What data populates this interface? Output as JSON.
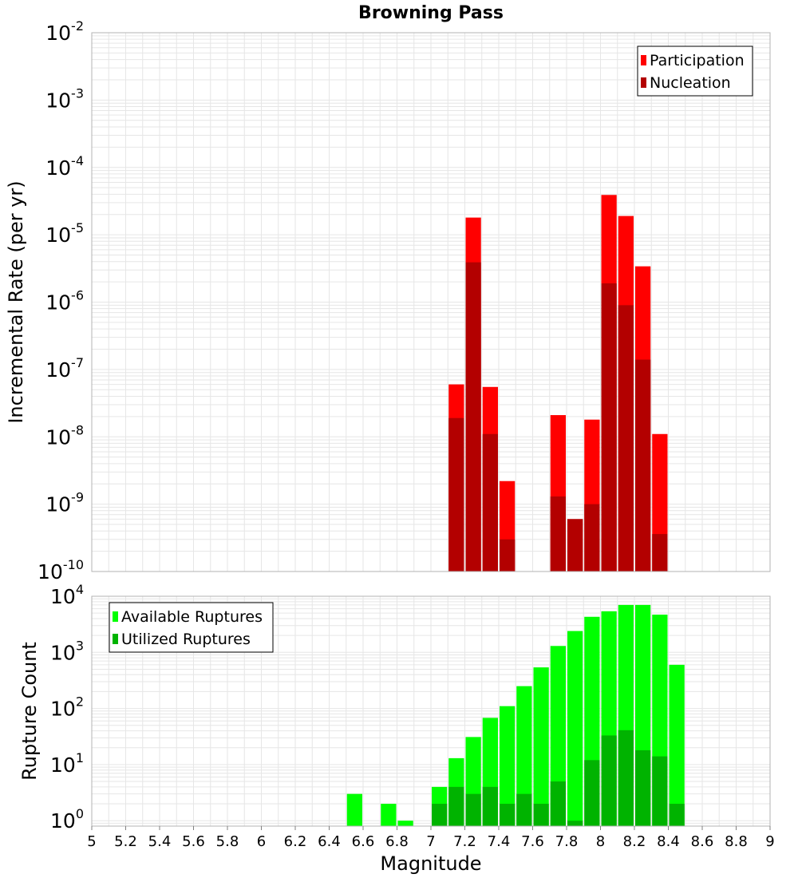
{
  "chart_data": [
    {
      "id": "rates",
      "type": "bar",
      "title": "Browning Pass",
      "xlabel": "",
      "ylabel": "Incremental Rate (per yr)",
      "yscale": "log",
      "xlim": [
        5,
        9
      ],
      "ylim": [
        1e-10,
        0.01
      ],
      "y_ticks": [
        {
          "base": "10",
          "exp": "-10",
          "value": 1e-10
        },
        {
          "base": "10",
          "exp": "-9",
          "value": 1e-09
        },
        {
          "base": "10",
          "exp": "-8",
          "value": 1e-08
        },
        {
          "base": "10",
          "exp": "-7",
          "value": 1e-07
        },
        {
          "base": "10",
          "exp": "-6",
          "value": 1e-06
        },
        {
          "base": "10",
          "exp": "-5",
          "value": 1e-05
        },
        {
          "base": "10",
          "exp": "-4",
          "value": 0.0001
        },
        {
          "base": "10",
          "exp": "-3",
          "value": 0.001
        },
        {
          "base": "10",
          "exp": "-2",
          "value": 0.01
        }
      ],
      "bin_width": 0.1,
      "grid": true,
      "legend_position": "top-right",
      "series": [
        {
          "name": "Participation",
          "color": "#ff0000",
          "points": [
            {
              "x": 7.15,
              "y": 6e-08
            },
            {
              "x": 7.25,
              "y": 1.8e-05
            },
            {
              "x": 7.35,
              "y": 5.5e-08
            },
            {
              "x": 7.45,
              "y": 2.2e-09
            },
            {
              "x": 7.75,
              "y": 2.1e-08
            },
            {
              "x": 7.85,
              "y": 6e-10
            },
            {
              "x": 7.95,
              "y": 1.8e-08
            },
            {
              "x": 8.05,
              "y": 3.9e-05
            },
            {
              "x": 8.15,
              "y": 1.9e-05
            },
            {
              "x": 8.25,
              "y": 3.4e-06
            },
            {
              "x": 8.35,
              "y": 1.1e-08
            }
          ]
        },
        {
          "name": "Nucleation",
          "color": "#b30000",
          "points": [
            {
              "x": 7.15,
              "y": 1.9e-08
            },
            {
              "x": 7.25,
              "y": 3.9e-06
            },
            {
              "x": 7.35,
              "y": 1.1e-08
            },
            {
              "x": 7.45,
              "y": 3e-10
            },
            {
              "x": 7.75,
              "y": 1.3e-09
            },
            {
              "x": 7.85,
              "y": 6e-10
            },
            {
              "x": 7.95,
              "y": 1e-09
            },
            {
              "x": 8.05,
              "y": 1.9e-06
            },
            {
              "x": 8.15,
              "y": 9e-07
            },
            {
              "x": 8.25,
              "y": 1.4e-07
            },
            {
              "x": 8.35,
              "y": 3.6e-10
            }
          ]
        }
      ]
    },
    {
      "id": "counts",
      "type": "bar",
      "title": "",
      "xlabel": "Magnitude",
      "ylabel": "Rupture Count",
      "yscale": "log",
      "xlim": [
        5,
        9
      ],
      "ylim": [
        0.8,
        10000
      ],
      "x_ticks": [
        "5",
        "5.2",
        "5.4",
        "5.6",
        "5.8",
        "6",
        "6.2",
        "6.4",
        "6.6",
        "6.8",
        "7",
        "7.2",
        "7.4",
        "7.6",
        "7.8",
        "8",
        "8.2",
        "8.4",
        "8.6",
        "8.8",
        "9"
      ],
      "y_ticks": [
        {
          "base": "10",
          "exp": "0",
          "value": 1
        },
        {
          "base": "10",
          "exp": "1",
          "value": 10
        },
        {
          "base": "10",
          "exp": "2",
          "value": 100
        },
        {
          "base": "10",
          "exp": "3",
          "value": 1000
        },
        {
          "base": "10",
          "exp": "4",
          "value": 10000
        }
      ],
      "bin_width": 0.1,
      "grid": true,
      "legend_position": "top-left",
      "series": [
        {
          "name": "Available Ruptures",
          "color": "#00ff00",
          "points": [
            {
              "x": 6.55,
              "y": 3
            },
            {
              "x": 6.75,
              "y": 2
            },
            {
              "x": 6.85,
              "y": 1
            },
            {
              "x": 7.05,
              "y": 4
            },
            {
              "x": 7.15,
              "y": 13
            },
            {
              "x": 7.25,
              "y": 31
            },
            {
              "x": 7.35,
              "y": 68
            },
            {
              "x": 7.45,
              "y": 110
            },
            {
              "x": 7.55,
              "y": 250
            },
            {
              "x": 7.65,
              "y": 540
            },
            {
              "x": 7.75,
              "y": 1300
            },
            {
              "x": 7.85,
              "y": 2400
            },
            {
              "x": 7.95,
              "y": 4300
            },
            {
              "x": 8.05,
              "y": 5400
            },
            {
              "x": 8.15,
              "y": 7000
            },
            {
              "x": 8.25,
              "y": 7000
            },
            {
              "x": 8.35,
              "y": 4700
            },
            {
              "x": 8.45,
              "y": 600
            }
          ]
        },
        {
          "name": "Utilized Ruptures",
          "color": "#00b300",
          "points": [
            {
              "x": 7.05,
              "y": 2
            },
            {
              "x": 7.15,
              "y": 4
            },
            {
              "x": 7.25,
              "y": 3
            },
            {
              "x": 7.35,
              "y": 4
            },
            {
              "x": 7.45,
              "y": 2
            },
            {
              "x": 7.55,
              "y": 3
            },
            {
              "x": 7.65,
              "y": 2
            },
            {
              "x": 7.75,
              "y": 5
            },
            {
              "x": 7.85,
              "y": 1
            },
            {
              "x": 7.95,
              "y": 12
            },
            {
              "x": 8.05,
              "y": 33
            },
            {
              "x": 8.15,
              "y": 41
            },
            {
              "x": 8.25,
              "y": 18
            },
            {
              "x": 8.35,
              "y": 14
            },
            {
              "x": 8.45,
              "y": 2
            }
          ]
        }
      ]
    }
  ]
}
